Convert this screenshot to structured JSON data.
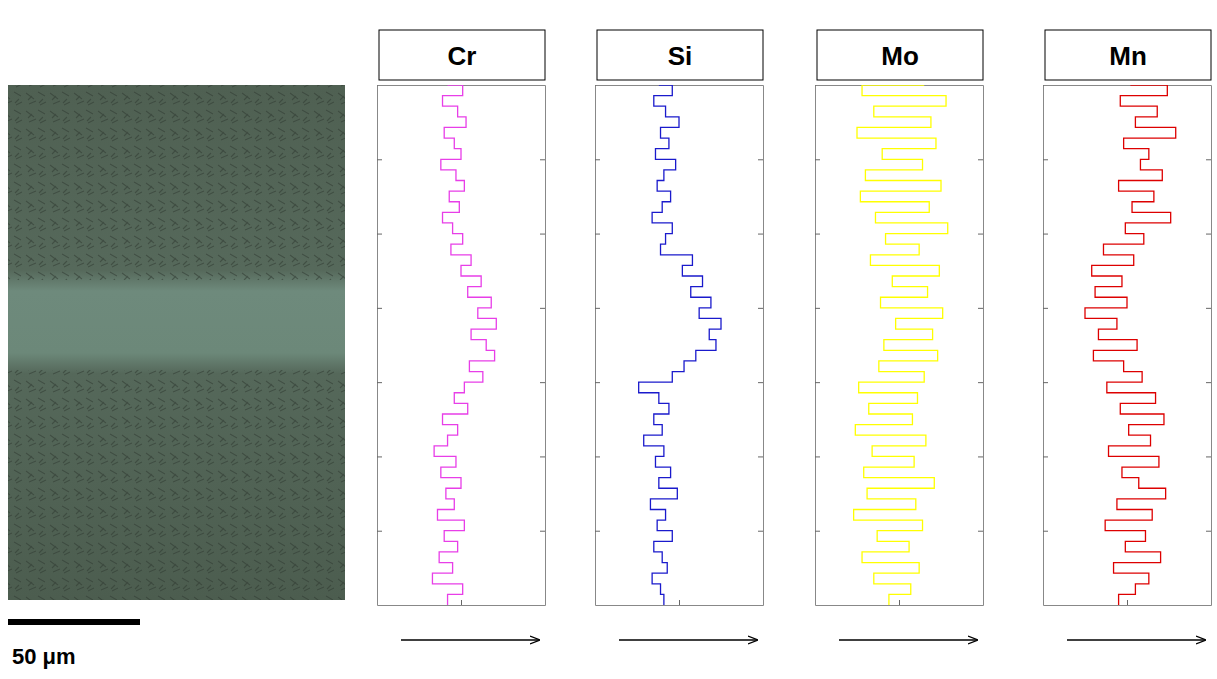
{
  "scale_bar": {
    "label": "50 μm"
  },
  "chart_data": [
    {
      "type": "line",
      "title": "Cr",
      "orientation": "horizontal",
      "tick_labels": false,
      "xlim": [
        0,
        10
      ],
      "xticks": [
        5
      ],
      "ylim": [
        0,
        49
      ],
      "yticks": [
        0,
        7,
        14,
        21,
        28,
        35,
        42
      ],
      "y": [
        0,
        1,
        2,
        3,
        4,
        5,
        6,
        7,
        8,
        9,
        10,
        11,
        12,
        13,
        14,
        15,
        16,
        17,
        18,
        19,
        20,
        21,
        22,
        23,
        24,
        25,
        26,
        27,
        28,
        29,
        30,
        31,
        32,
        33,
        34,
        35,
        36,
        37,
        38,
        39,
        40,
        41,
        42,
        43,
        44,
        45,
        46,
        47,
        48,
        49
      ],
      "series": [
        {
          "color": "#e83ee8",
          "values": [
            4.2,
            5.1,
            3.9,
            4.8,
            5.3,
            4.0,
            4.6,
            5.0,
            3.8,
            4.7,
            5.2,
            4.3,
            4.9,
            3.9,
            4.5,
            5.1,
            4.4,
            5.6,
            5.0,
            6.2,
            5.4,
            6.8,
            6.0,
            7.1,
            5.6,
            6.5,
            7.0,
            5.5,
            6.3,
            5.2,
            4.6,
            5.4,
            3.9,
            4.8,
            4.2,
            3.4,
            4.7,
            3.8,
            5.0,
            4.1,
            4.6,
            3.6,
            5.2,
            4.0,
            4.8,
            3.7,
            4.5,
            3.3,
            5.1,
            4.2
          ]
        }
      ]
    },
    {
      "type": "line",
      "title": "Si",
      "orientation": "horizontal",
      "tick_labels": false,
      "xlim": [
        0,
        10
      ],
      "xticks": [
        5
      ],
      "ylim": [
        0,
        49
      ],
      "yticks": [
        0,
        7,
        14,
        21,
        28,
        35,
        42
      ],
      "y": [
        0,
        1,
        2,
        3,
        4,
        5,
        6,
        7,
        8,
        9,
        10,
        11,
        12,
        13,
        14,
        15,
        16,
        17,
        18,
        19,
        20,
        21,
        22,
        23,
        24,
        25,
        26,
        27,
        28,
        29,
        30,
        31,
        32,
        33,
        34,
        35,
        36,
        37,
        38,
        39,
        40,
        41,
        42,
        43,
        44,
        45,
        46,
        47,
        48,
        49
      ],
      "series": [
        {
          "color": "#1a1acc",
          "values": [
            3.8,
            4.6,
            3.5,
            4.2,
            5.0,
            3.9,
            4.4,
            3.6,
            4.8,
            4.1,
            3.7,
            4.5,
            4.0,
            3.4,
            4.6,
            4.2,
            3.9,
            5.8,
            5.2,
            6.4,
            5.7,
            6.9,
            6.2,
            7.5,
            6.8,
            7.2,
            6.0,
            5.3,
            4.6,
            2.6,
            3.8,
            4.4,
            3.5,
            4.0,
            2.9,
            4.1,
            3.6,
            4.5,
            3.8,
            4.9,
            3.3,
            4.2,
            3.7,
            4.6,
            3.5,
            4.0,
            4.3,
            3.4,
            3.9,
            4.1
          ]
        }
      ]
    },
    {
      "type": "line",
      "title": "Mo",
      "orientation": "horizontal",
      "tick_labels": false,
      "xlim": [
        0,
        10
      ],
      "xticks": [
        5
      ],
      "ylim": [
        0,
        49
      ],
      "yticks": [
        0,
        7,
        14,
        21,
        28,
        35,
        42
      ],
      "y": [
        0,
        1,
        2,
        3,
        4,
        5,
        6,
        7,
        8,
        9,
        10,
        11,
        12,
        13,
        14,
        15,
        16,
        17,
        18,
        19,
        20,
        21,
        22,
        23,
        24,
        25,
        26,
        27,
        28,
        29,
        30,
        31,
        32,
        33,
        34,
        35,
        36,
        37,
        38,
        39,
        40,
        41,
        42,
        43,
        44,
        45,
        46,
        47,
        48,
        49
      ],
      "series": [
        {
          "color": "#ffff00",
          "values": [
            6.5,
            2.8,
            7.8,
            3.5,
            6.9,
            2.5,
            7.2,
            4.0,
            6.4,
            3.0,
            7.5,
            2.7,
            6.8,
            3.6,
            7.9,
            4.2,
            6.2,
            3.3,
            7.4,
            4.6,
            6.7,
            3.9,
            7.6,
            4.8,
            7.0,
            4.1,
            7.3,
            3.8,
            6.5,
            2.6,
            6.1,
            3.2,
            5.8,
            2.4,
            6.6,
            3.4,
            5.9,
            2.9,
            7.1,
            3.1,
            6.0,
            2.3,
            6.4,
            3.7,
            5.6,
            2.8,
            6.2,
            3.5,
            5.7,
            4.4
          ]
        }
      ]
    },
    {
      "type": "line",
      "title": "Mn",
      "orientation": "horizontal",
      "tick_labels": false,
      "xlim": [
        0,
        10
      ],
      "xticks": [
        5
      ],
      "ylim": [
        0,
        49
      ],
      "yticks": [
        0,
        7,
        14,
        21,
        28,
        35,
        42
      ],
      "y": [
        0,
        1,
        2,
        3,
        4,
        5,
        6,
        7,
        8,
        9,
        10,
        11,
        12,
        13,
        14,
        15,
        16,
        17,
        18,
        19,
        20,
        21,
        22,
        23,
        24,
        25,
        26,
        27,
        28,
        29,
        30,
        31,
        32,
        33,
        34,
        35,
        36,
        37,
        38,
        39,
        40,
        41,
        42,
        43,
        44,
        45,
        46,
        47,
        48,
        49
      ],
      "series": [
        {
          "color": "#dd0000",
          "values": [
            5.2,
            7.4,
            4.6,
            6.8,
            5.5,
            7.9,
            4.8,
            6.3,
            5.8,
            7.1,
            4.5,
            6.6,
            5.3,
            7.6,
            4.9,
            6.0,
            3.6,
            5.4,
            2.9,
            4.7,
            3.1,
            5.0,
            2.5,
            4.4,
            3.3,
            5.6,
            3.0,
            4.8,
            5.9,
            3.8,
            6.7,
            4.6,
            7.2,
            5.1,
            6.4,
            3.9,
            6.9,
            4.7,
            5.7,
            7.3,
            4.4,
            6.5,
            3.7,
            6.1,
            4.9,
            7.0,
            4.2,
            6.3,
            5.5,
            4.5
          ]
        }
      ]
    }
  ]
}
